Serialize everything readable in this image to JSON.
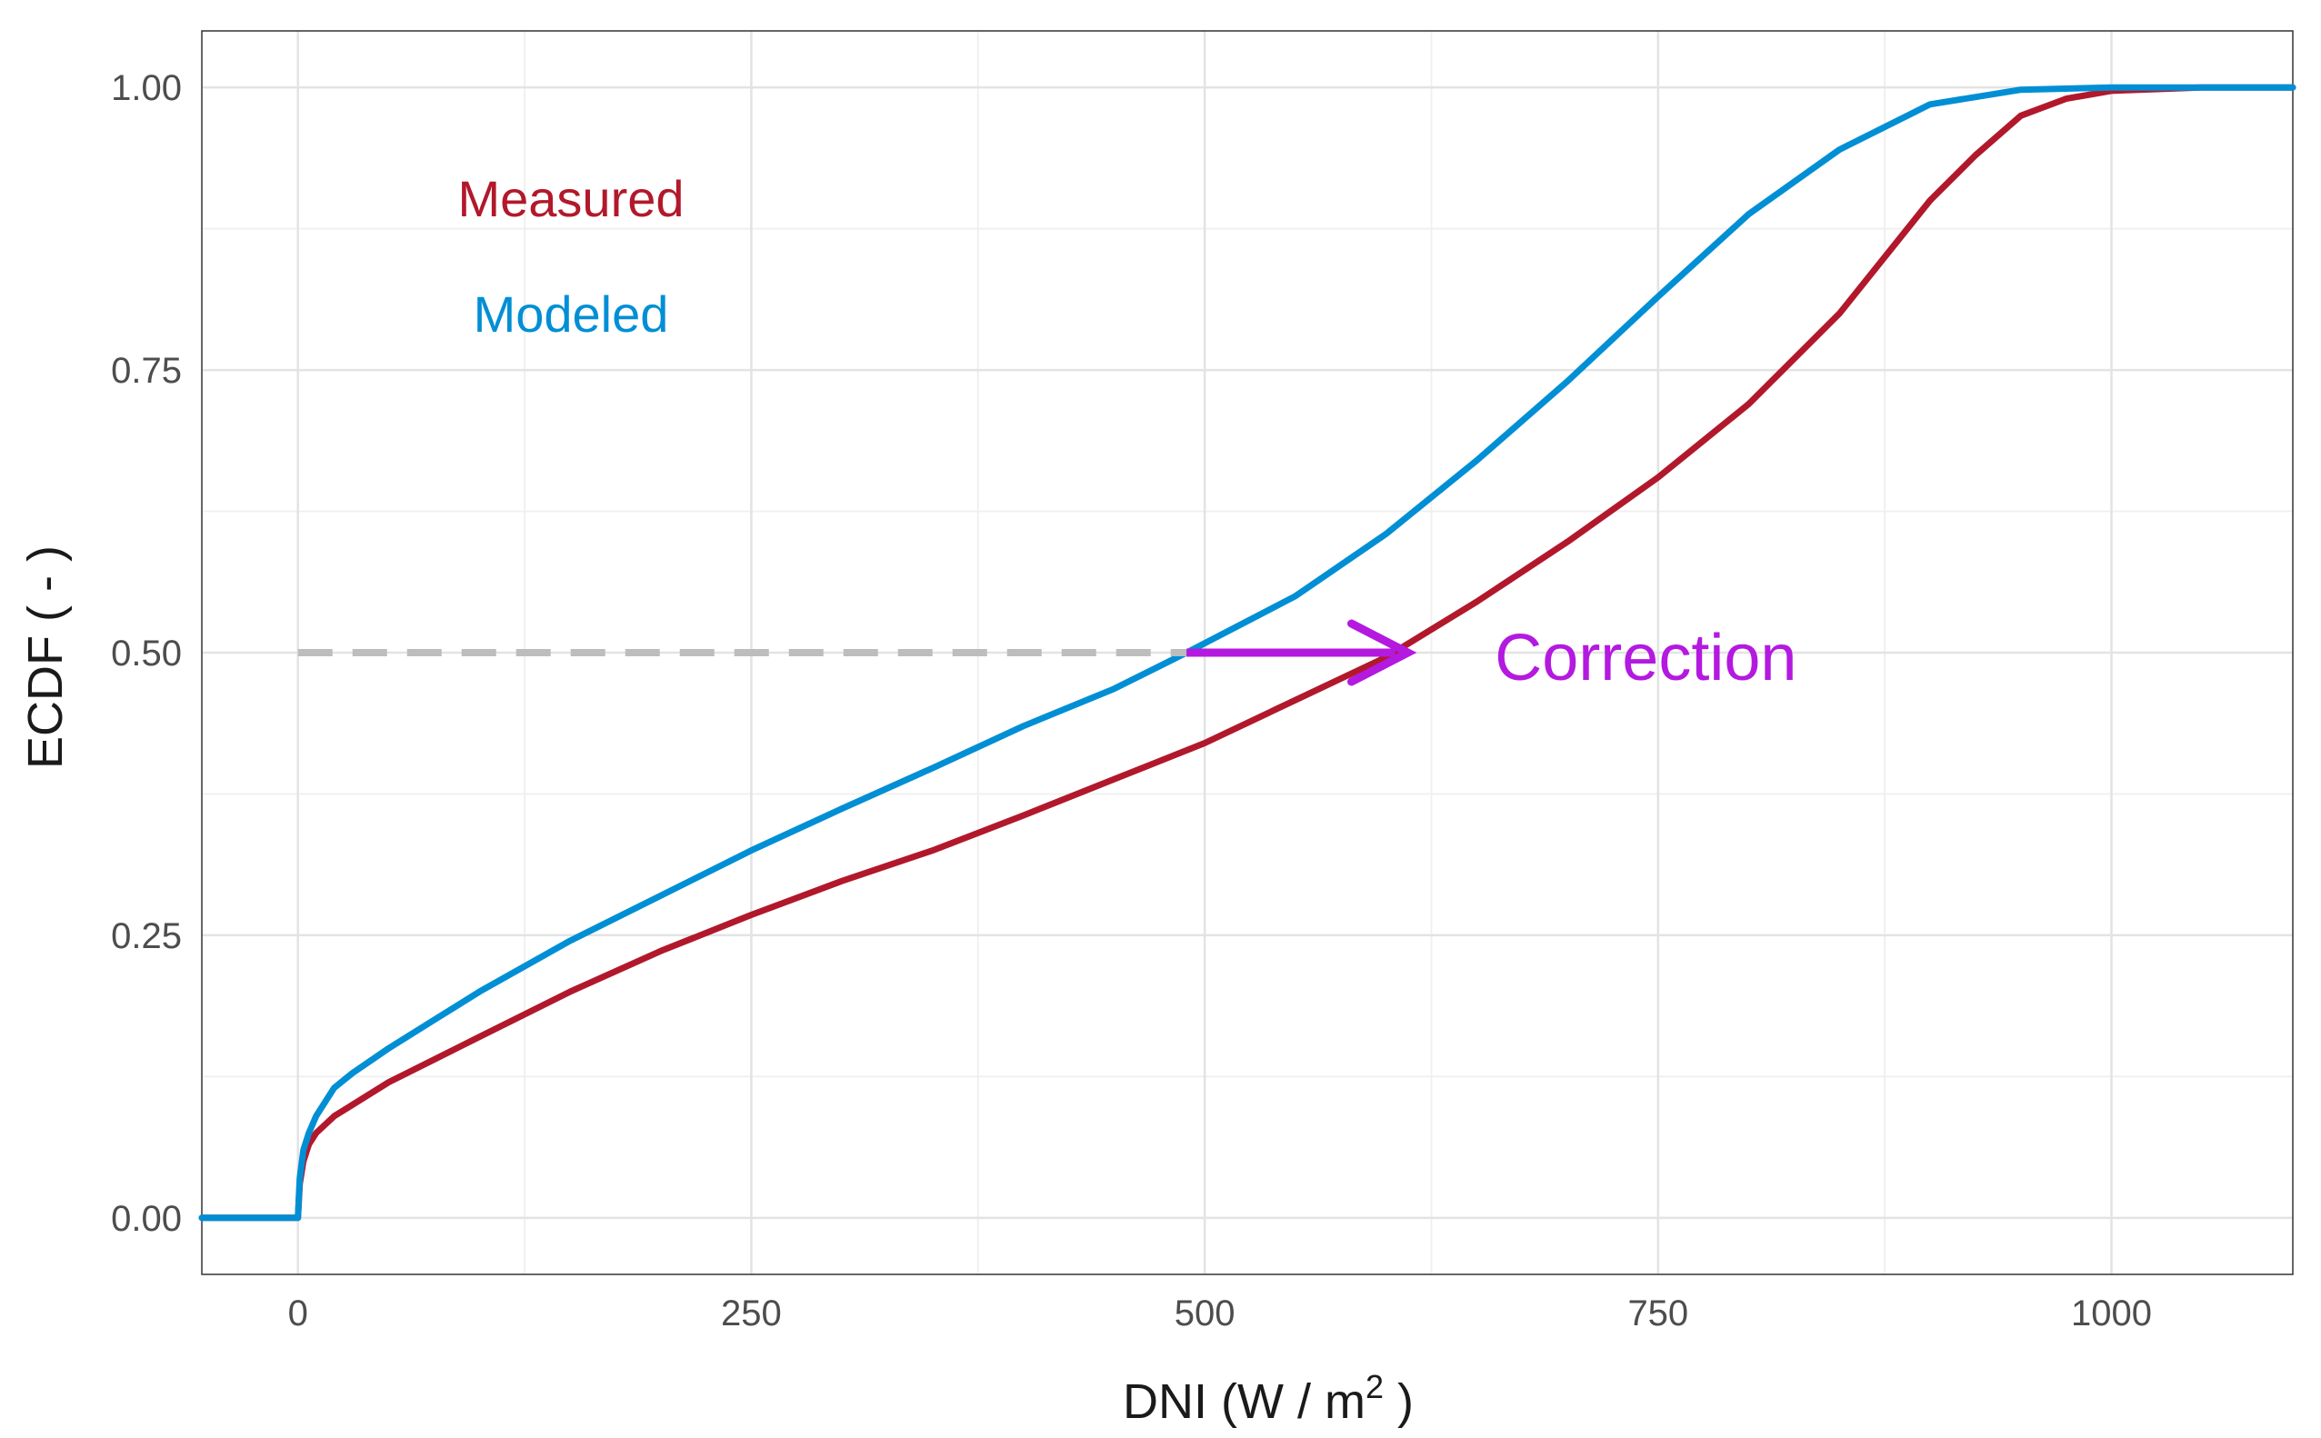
{
  "chart_data": {
    "type": "line",
    "title": "",
    "xlabel_main": "DNI (W / m",
    "xlabel_sup": "2",
    "xlabel_end": " )",
    "ylabel": "ECDF ( - )",
    "xlim": [
      -53,
      1100
    ],
    "ylim": [
      -0.05,
      1.05
    ],
    "x_ticks": [
      0,
      250,
      500,
      750,
      1000
    ],
    "x_tick_labels": [
      "0",
      "250",
      "500",
      "750",
      "1000"
    ],
    "y_ticks": [
      0,
      0.25,
      0.5,
      0.75,
      1.0
    ],
    "y_tick_labels": [
      "0.00",
      "0.25",
      "0.50",
      "0.75",
      "1.00"
    ],
    "grid": true,
    "series": [
      {
        "name": "Measured",
        "color": "#b2182b",
        "points": [
          [
            -53,
            0
          ],
          [
            0,
            0
          ],
          [
            1,
            0.03
          ],
          [
            3,
            0.05
          ],
          [
            6,
            0.065
          ],
          [
            10,
            0.075
          ],
          [
            20,
            0.09
          ],
          [
            30,
            0.1
          ],
          [
            50,
            0.12
          ],
          [
            75,
            0.14
          ],
          [
            100,
            0.16
          ],
          [
            150,
            0.2
          ],
          [
            200,
            0.236
          ],
          [
            250,
            0.268
          ],
          [
            300,
            0.298
          ],
          [
            350,
            0.325
          ],
          [
            400,
            0.356
          ],
          [
            450,
            0.388
          ],
          [
            500,
            0.42
          ],
          [
            550,
            0.458
          ],
          [
            600,
            0.496
          ],
          [
            650,
            0.545
          ],
          [
            700,
            0.598
          ],
          [
            750,
            0.655
          ],
          [
            800,
            0.72
          ],
          [
            850,
            0.8
          ],
          [
            880,
            0.86
          ],
          [
            900,
            0.9
          ],
          [
            925,
            0.94
          ],
          [
            950,
            0.975
          ],
          [
            975,
            0.99
          ],
          [
            1000,
            0.997
          ],
          [
            1050,
            1.0
          ],
          [
            1100,
            1.0
          ]
        ]
      },
      {
        "name": "Modeled",
        "color": "#008fd5",
        "points": [
          [
            -53,
            0
          ],
          [
            0,
            0
          ],
          [
            1,
            0.035
          ],
          [
            3,
            0.06
          ],
          [
            6,
            0.075
          ],
          [
            10,
            0.09
          ],
          [
            20,
            0.115
          ],
          [
            30,
            0.128
          ],
          [
            50,
            0.15
          ],
          [
            75,
            0.175
          ],
          [
            100,
            0.2
          ],
          [
            150,
            0.245
          ],
          [
            200,
            0.285
          ],
          [
            250,
            0.325
          ],
          [
            300,
            0.362
          ],
          [
            350,
            0.398
          ],
          [
            400,
            0.435
          ],
          [
            450,
            0.468
          ],
          [
            490,
            0.5
          ],
          [
            550,
            0.55
          ],
          [
            600,
            0.605
          ],
          [
            650,
            0.67
          ],
          [
            700,
            0.74
          ],
          [
            750,
            0.815
          ],
          [
            800,
            0.888
          ],
          [
            850,
            0.945
          ],
          [
            900,
            0.985
          ],
          [
            950,
            0.998
          ],
          [
            1000,
            1.0
          ],
          [
            1100,
            1.0
          ]
        ]
      }
    ],
    "legend": [
      {
        "label": "Measured",
        "color": "#b2182b"
      },
      {
        "label": "Modeled",
        "color": "#008fd5"
      }
    ],
    "annotations": {
      "reference_y": 0.5,
      "dashed_from_x": 0,
      "dashed_to_x": 490,
      "dashed_color": "#bdbdbd",
      "arrow_from_x": 490,
      "arrow_to_x": 612,
      "arrow_color": "#b419e0",
      "label": "Correction",
      "label_anchor": [
        660,
        0.495
      ]
    }
  }
}
